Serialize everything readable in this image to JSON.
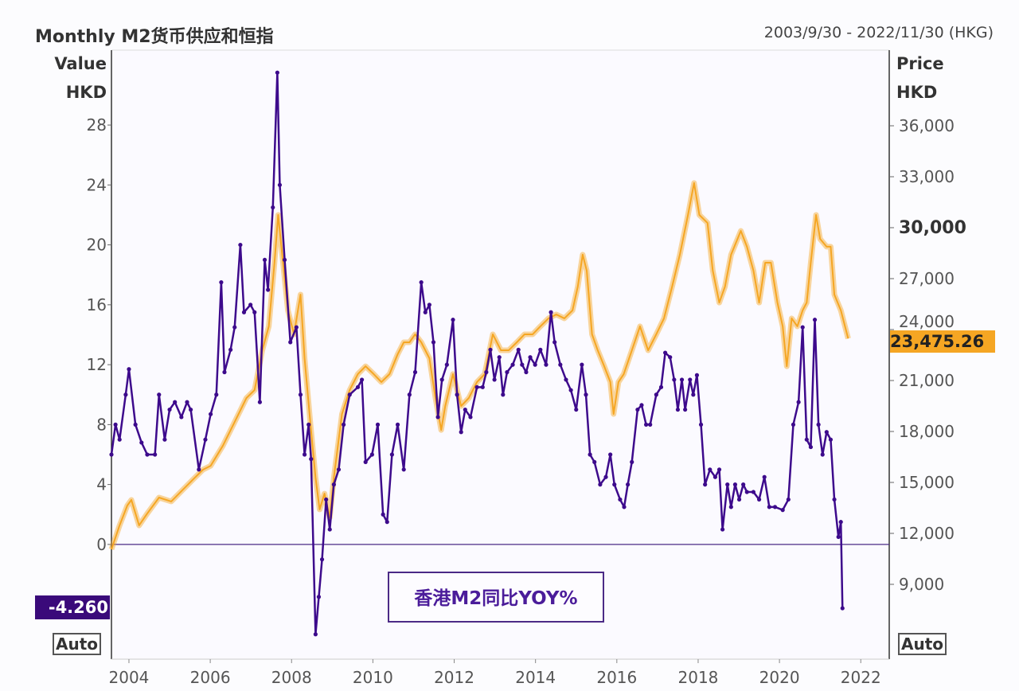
{
  "header": {
    "title": "Monthly M2货币供应和恒指",
    "date_range": "2003/9/30 - 2022/11/30 (HKG)"
  },
  "left_axis_head": [
    "Value",
    "HKD"
  ],
  "right_axis_head": [
    "Price",
    "HKD"
  ],
  "auto_label": "Auto",
  "legend_label": "香港M2同比YOY%",
  "last_values": {
    "m2": "-4.260",
    "hsi": "23,475.26"
  },
  "colors": {
    "m2": "#3d0a8c",
    "hsi": "#f5a623",
    "m2_label_bg": "#3a0a7a",
    "hsi_label_bg": "#f5a623"
  },
  "chart_data": {
    "type": "line",
    "title": "Monthly M2货币供应和恒指",
    "x_ticks": [
      "2004",
      "2006",
      "2008",
      "2010",
      "2012",
      "2014",
      "2016",
      "2018",
      "2020",
      "2022"
    ],
    "xlim": [
      2003.57,
      2022.7
    ],
    "left_axis": {
      "label": "Value HKD",
      "ylim": [
        -7.66,
        33.0
      ],
      "ticks": [
        "0",
        "4",
        "8",
        "12",
        "16",
        "20",
        "24",
        "28"
      ]
    },
    "right_axis": {
      "label": "Price HKD",
      "ylim": [
        4594,
        40453
      ],
      "ticks": [
        "9,000",
        "12,000",
        "15,000",
        "18,000",
        "21,000",
        "24,000",
        "27,000",
        "30,000",
        "33,000",
        "36,000"
      ],
      "bold_tick": "30,000"
    },
    "grid": false,
    "series": [
      {
        "name": "香港M2同比YOY%",
        "axis": "left",
        "points": [
          [
            2003.57,
            6
          ],
          [
            2003.67,
            8
          ],
          [
            2003.77,
            7
          ],
          [
            2003.92,
            10
          ],
          [
            2004.0,
            11.7
          ],
          [
            2004.16,
            8
          ],
          [
            2004.31,
            6.8
          ],
          [
            2004.45,
            6
          ],
          [
            2004.64,
            6
          ],
          [
            2004.74,
            10
          ],
          [
            2004.88,
            7
          ],
          [
            2005.0,
            9
          ],
          [
            2005.13,
            9.5
          ],
          [
            2005.29,
            8.5
          ],
          [
            2005.43,
            9.5
          ],
          [
            2005.52,
            9
          ],
          [
            2005.72,
            5
          ],
          [
            2005.88,
            7
          ],
          [
            2006.01,
            8.7
          ],
          [
            2006.15,
            10
          ],
          [
            2006.27,
            17.5
          ],
          [
            2006.35,
            11.5
          ],
          [
            2006.5,
            13
          ],
          [
            2006.6,
            14.5
          ],
          [
            2006.74,
            20
          ],
          [
            2006.83,
            15.5
          ],
          [
            2006.99,
            16
          ],
          [
            2007.09,
            15.5
          ],
          [
            2007.22,
            9.5
          ],
          [
            2007.34,
            19
          ],
          [
            2007.42,
            17
          ],
          [
            2007.54,
            22.5
          ],
          [
            2007.65,
            31.5
          ],
          [
            2007.71,
            24
          ],
          [
            2007.83,
            19
          ],
          [
            2007.97,
            13.5
          ],
          [
            2008.12,
            14.5
          ],
          [
            2008.22,
            10
          ],
          [
            2008.32,
            6
          ],
          [
            2008.42,
            8
          ],
          [
            2008.48,
            5.7
          ],
          [
            2008.59,
            -6
          ],
          [
            2008.67,
            -3.5
          ],
          [
            2008.75,
            -1
          ],
          [
            2008.85,
            3
          ],
          [
            2008.94,
            1
          ],
          [
            2009.04,
            4
          ],
          [
            2009.16,
            5
          ],
          [
            2009.28,
            8
          ],
          [
            2009.43,
            10
          ],
          [
            2009.63,
            10.5
          ],
          [
            2009.73,
            11
          ],
          [
            2009.82,
            5.5
          ],
          [
            2009.98,
            6
          ],
          [
            2010.12,
            8
          ],
          [
            2010.25,
            2
          ],
          [
            2010.35,
            1.5
          ],
          [
            2010.47,
            6
          ],
          [
            2010.61,
            8
          ],
          [
            2010.76,
            5
          ],
          [
            2010.9,
            10
          ],
          [
            2011.04,
            11.5
          ],
          [
            2011.19,
            17.5
          ],
          [
            2011.29,
            15.5
          ],
          [
            2011.39,
            16
          ],
          [
            2011.49,
            13.5
          ],
          [
            2011.6,
            8.5
          ],
          [
            2011.7,
            11
          ],
          [
            2011.82,
            12
          ],
          [
            2011.97,
            15
          ],
          [
            2012.07,
            10
          ],
          [
            2012.17,
            7.5
          ],
          [
            2012.27,
            9
          ],
          [
            2012.4,
            8.5
          ],
          [
            2012.56,
            10.5
          ],
          [
            2012.7,
            10.5
          ],
          [
            2012.79,
            11.5
          ],
          [
            2012.89,
            13
          ],
          [
            2012.99,
            11
          ],
          [
            2013.11,
            12.5
          ],
          [
            2013.2,
            10
          ],
          [
            2013.3,
            11.5
          ],
          [
            2013.44,
            12
          ],
          [
            2013.58,
            13
          ],
          [
            2013.67,
            12
          ],
          [
            2013.77,
            11.5
          ],
          [
            2013.87,
            12.5
          ],
          [
            2013.99,
            12
          ],
          [
            2014.12,
            13
          ],
          [
            2014.26,
            12
          ],
          [
            2014.38,
            15.5
          ],
          [
            2014.47,
            13.5
          ],
          [
            2014.61,
            12
          ],
          [
            2014.75,
            11
          ],
          [
            2014.87,
            10.3
          ],
          [
            2015.0,
            9
          ],
          [
            2015.14,
            12
          ],
          [
            2015.24,
            10
          ],
          [
            2015.34,
            6
          ],
          [
            2015.45,
            5.5
          ],
          [
            2015.59,
            4
          ],
          [
            2015.73,
            4.5
          ],
          [
            2015.84,
            6
          ],
          [
            2015.94,
            4
          ],
          [
            2016.08,
            3
          ],
          [
            2016.18,
            2.5
          ],
          [
            2016.27,
            4
          ],
          [
            2016.37,
            5.5
          ],
          [
            2016.51,
            9
          ],
          [
            2016.61,
            9.3
          ],
          [
            2016.72,
            8
          ],
          [
            2016.82,
            8
          ],
          [
            2016.97,
            10
          ],
          [
            2017.09,
            10.5
          ],
          [
            2017.19,
            12.8
          ],
          [
            2017.31,
            12.5
          ],
          [
            2017.41,
            11
          ],
          [
            2017.5,
            9
          ],
          [
            2017.6,
            11
          ],
          [
            2017.68,
            9
          ],
          [
            2017.8,
            11
          ],
          [
            2017.88,
            10
          ],
          [
            2017.97,
            11.3
          ],
          [
            2018.07,
            8
          ],
          [
            2018.17,
            4
          ],
          [
            2018.29,
            5
          ],
          [
            2018.42,
            4.5
          ],
          [
            2018.52,
            5
          ],
          [
            2018.6,
            1
          ],
          [
            2018.72,
            4
          ],
          [
            2018.81,
            2.5
          ],
          [
            2018.91,
            4
          ],
          [
            2019.01,
            3
          ],
          [
            2019.11,
            4
          ],
          [
            2019.2,
            3.5
          ],
          [
            2019.36,
            3.5
          ],
          [
            2019.5,
            3
          ],
          [
            2019.63,
            4.5
          ],
          [
            2019.75,
            2.5
          ],
          [
            2019.89,
            2.5
          ],
          [
            2020.08,
            2.3
          ],
          [
            2020.22,
            3
          ],
          [
            2020.34,
            8
          ],
          [
            2020.47,
            9.5
          ],
          [
            2020.57,
            14.5
          ],
          [
            2020.67,
            7
          ],
          [
            2020.77,
            6.5
          ],
          [
            2020.87,
            15
          ],
          [
            2020.96,
            8
          ],
          [
            2021.06,
            6
          ],
          [
            2021.16,
            7.5
          ],
          [
            2021.26,
            7
          ],
          [
            2021.35,
            3
          ],
          [
            2021.45,
            0.5
          ],
          [
            2021.51,
            1.5
          ],
          [
            2021.55,
            -4.26
          ]
        ]
      },
      {
        "axis": "right",
        "points": [
          [
            2003.57,
            11060
          ],
          [
            2003.77,
            12470
          ],
          [
            2003.96,
            13640
          ],
          [
            2004.06,
            13970
          ],
          [
            2004.25,
            12470
          ],
          [
            2004.45,
            13170
          ],
          [
            2004.74,
            14110
          ],
          [
            2005.04,
            13880
          ],
          [
            2005.33,
            14580
          ],
          [
            2005.62,
            15280
          ],
          [
            2005.82,
            15750
          ],
          [
            2006.01,
            15980
          ],
          [
            2006.31,
            17160
          ],
          [
            2006.6,
            18560
          ],
          [
            2006.89,
            19970
          ],
          [
            2007.09,
            20440
          ],
          [
            2007.28,
            22780
          ],
          [
            2007.44,
            24190
          ],
          [
            2007.58,
            27940
          ],
          [
            2007.67,
            30750
          ],
          [
            2007.77,
            28410
          ],
          [
            2007.91,
            25130
          ],
          [
            2008.06,
            23720
          ],
          [
            2008.22,
            26060
          ],
          [
            2008.32,
            22310
          ],
          [
            2008.46,
            18560
          ],
          [
            2008.59,
            15280
          ],
          [
            2008.69,
            13410
          ],
          [
            2008.81,
            14340
          ],
          [
            2008.94,
            12940
          ],
          [
            2009.04,
            15280
          ],
          [
            2009.24,
            19030
          ],
          [
            2009.43,
            20440
          ],
          [
            2009.63,
            21380
          ],
          [
            2009.82,
            21840
          ],
          [
            2010.02,
            21380
          ],
          [
            2010.21,
            20910
          ],
          [
            2010.41,
            21380
          ],
          [
            2010.61,
            22550
          ],
          [
            2010.76,
            23250
          ],
          [
            2010.9,
            23250
          ],
          [
            2011.04,
            23720
          ],
          [
            2011.19,
            23250
          ],
          [
            2011.39,
            22310
          ],
          [
            2011.54,
            19970
          ],
          [
            2011.68,
            18090
          ],
          [
            2011.78,
            19500
          ],
          [
            2011.97,
            21380
          ],
          [
            2012.17,
            19500
          ],
          [
            2012.36,
            19970
          ],
          [
            2012.56,
            20910
          ],
          [
            2012.75,
            21380
          ],
          [
            2012.95,
            23720
          ],
          [
            2013.15,
            22780
          ],
          [
            2013.34,
            22780
          ],
          [
            2013.54,
            23250
          ],
          [
            2013.73,
            23720
          ],
          [
            2013.93,
            23720
          ],
          [
            2014.12,
            24190
          ],
          [
            2014.32,
            24660
          ],
          [
            2014.51,
            24890
          ],
          [
            2014.71,
            24660
          ],
          [
            2014.91,
            25130
          ],
          [
            2015.04,
            26530
          ],
          [
            2015.16,
            28410
          ],
          [
            2015.26,
            27470
          ],
          [
            2015.39,
            23720
          ],
          [
            2015.53,
            22780
          ],
          [
            2015.69,
            21840
          ],
          [
            2015.84,
            20910
          ],
          [
            2015.92,
            19030
          ],
          [
            2016.04,
            20910
          ],
          [
            2016.17,
            21380
          ],
          [
            2016.37,
            22780
          ],
          [
            2016.57,
            24190
          ],
          [
            2016.77,
            22780
          ],
          [
            2016.97,
            23720
          ],
          [
            2017.16,
            24660
          ],
          [
            2017.36,
            26530
          ],
          [
            2017.55,
            28410
          ],
          [
            2017.75,
            30750
          ],
          [
            2017.9,
            32630
          ],
          [
            2018.03,
            30750
          ],
          [
            2018.23,
            30280
          ],
          [
            2018.36,
            27470
          ],
          [
            2018.52,
            25590
          ],
          [
            2018.66,
            26530
          ],
          [
            2018.81,
            28410
          ],
          [
            2019.05,
            29810
          ],
          [
            2019.2,
            28880
          ],
          [
            2019.36,
            27470
          ],
          [
            2019.5,
            25590
          ],
          [
            2019.65,
            27940
          ],
          [
            2019.79,
            27940
          ],
          [
            2019.95,
            25590
          ],
          [
            2020.08,
            24190
          ],
          [
            2020.18,
            21840
          ],
          [
            2020.3,
            24660
          ],
          [
            2020.44,
            24190
          ],
          [
            2020.57,
            25130
          ],
          [
            2020.67,
            25590
          ],
          [
            2020.77,
            27940
          ],
          [
            2020.9,
            30750
          ],
          [
            2021.0,
            29340
          ],
          [
            2021.16,
            28880
          ],
          [
            2021.26,
            28880
          ],
          [
            2021.35,
            26060
          ],
          [
            2021.51,
            25130
          ],
          [
            2021.69,
            23475.26
          ]
        ]
      }
    ]
  }
}
